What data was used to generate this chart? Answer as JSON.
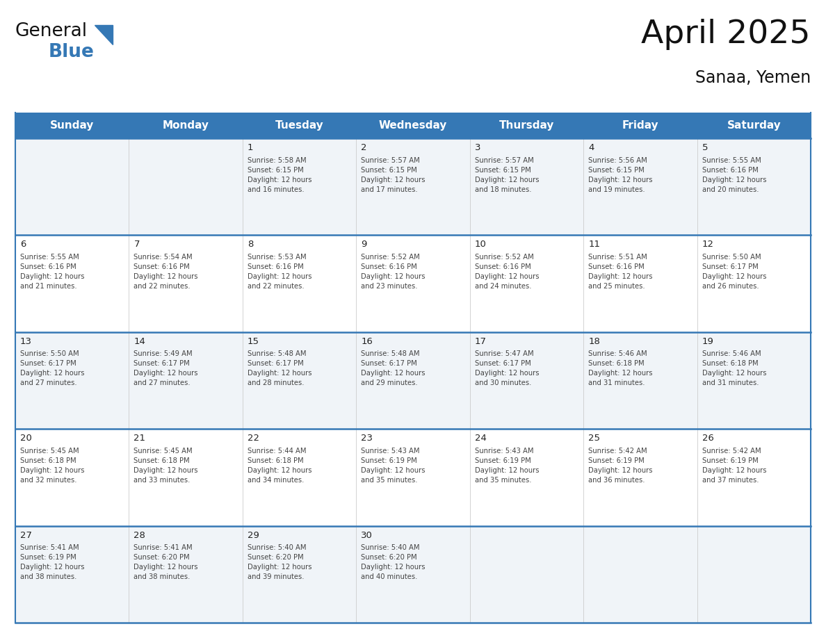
{
  "title": "April 2025",
  "subtitle": "Sanaa, Yemen",
  "header_bg_color": "#3578b5",
  "header_text_color": "#ffffff",
  "border_color": "#3578b5",
  "week_sep_color": "#3578b5",
  "col_sep_color": "#cccccc",
  "row_bg_even": "#f0f4f8",
  "row_bg_odd": "#ffffff",
  "title_color": "#111111",
  "subtitle_color": "#111111",
  "day_number_color": "#222222",
  "cell_text_color": "#444444",
  "logo_black_color": "#111111",
  "logo_blue_color": "#3578b5",
  "triangle_color": "#3578b5",
  "day_headers": [
    "Sunday",
    "Monday",
    "Tuesday",
    "Wednesday",
    "Thursday",
    "Friday",
    "Saturday"
  ],
  "calendar_data": [
    [
      {
        "day": null,
        "sunrise": null,
        "sunset": null,
        "daylight": ""
      },
      {
        "day": null,
        "sunrise": null,
        "sunset": null,
        "daylight": ""
      },
      {
        "day": 1,
        "sunrise": "5:58 AM",
        "sunset": "6:15 PM",
        "daylight": "12 hours\nand 16 minutes."
      },
      {
        "day": 2,
        "sunrise": "5:57 AM",
        "sunset": "6:15 PM",
        "daylight": "12 hours\nand 17 minutes."
      },
      {
        "day": 3,
        "sunrise": "5:57 AM",
        "sunset": "6:15 PM",
        "daylight": "12 hours\nand 18 minutes."
      },
      {
        "day": 4,
        "sunrise": "5:56 AM",
        "sunset": "6:15 PM",
        "daylight": "12 hours\nand 19 minutes."
      },
      {
        "day": 5,
        "sunrise": "5:55 AM",
        "sunset": "6:16 PM",
        "daylight": "12 hours\nand 20 minutes."
      }
    ],
    [
      {
        "day": 6,
        "sunrise": "5:55 AM",
        "sunset": "6:16 PM",
        "daylight": "12 hours\nand 21 minutes."
      },
      {
        "day": 7,
        "sunrise": "5:54 AM",
        "sunset": "6:16 PM",
        "daylight": "12 hours\nand 22 minutes."
      },
      {
        "day": 8,
        "sunrise": "5:53 AM",
        "sunset": "6:16 PM",
        "daylight": "12 hours\nand 22 minutes."
      },
      {
        "day": 9,
        "sunrise": "5:52 AM",
        "sunset": "6:16 PM",
        "daylight": "12 hours\nand 23 minutes."
      },
      {
        "day": 10,
        "sunrise": "5:52 AM",
        "sunset": "6:16 PM",
        "daylight": "12 hours\nand 24 minutes."
      },
      {
        "day": 11,
        "sunrise": "5:51 AM",
        "sunset": "6:16 PM",
        "daylight": "12 hours\nand 25 minutes."
      },
      {
        "day": 12,
        "sunrise": "5:50 AM",
        "sunset": "6:17 PM",
        "daylight": "12 hours\nand 26 minutes."
      }
    ],
    [
      {
        "day": 13,
        "sunrise": "5:50 AM",
        "sunset": "6:17 PM",
        "daylight": "12 hours\nand 27 minutes."
      },
      {
        "day": 14,
        "sunrise": "5:49 AM",
        "sunset": "6:17 PM",
        "daylight": "12 hours\nand 27 minutes."
      },
      {
        "day": 15,
        "sunrise": "5:48 AM",
        "sunset": "6:17 PM",
        "daylight": "12 hours\nand 28 minutes."
      },
      {
        "day": 16,
        "sunrise": "5:48 AM",
        "sunset": "6:17 PM",
        "daylight": "12 hours\nand 29 minutes."
      },
      {
        "day": 17,
        "sunrise": "5:47 AM",
        "sunset": "6:17 PM",
        "daylight": "12 hours\nand 30 minutes."
      },
      {
        "day": 18,
        "sunrise": "5:46 AM",
        "sunset": "6:18 PM",
        "daylight": "12 hours\nand 31 minutes."
      },
      {
        "day": 19,
        "sunrise": "5:46 AM",
        "sunset": "6:18 PM",
        "daylight": "12 hours\nand 31 minutes."
      }
    ],
    [
      {
        "day": 20,
        "sunrise": "5:45 AM",
        "sunset": "6:18 PM",
        "daylight": "12 hours\nand 32 minutes."
      },
      {
        "day": 21,
        "sunrise": "5:45 AM",
        "sunset": "6:18 PM",
        "daylight": "12 hours\nand 33 minutes."
      },
      {
        "day": 22,
        "sunrise": "5:44 AM",
        "sunset": "6:18 PM",
        "daylight": "12 hours\nand 34 minutes."
      },
      {
        "day": 23,
        "sunrise": "5:43 AM",
        "sunset": "6:19 PM",
        "daylight": "12 hours\nand 35 minutes."
      },
      {
        "day": 24,
        "sunrise": "5:43 AM",
        "sunset": "6:19 PM",
        "daylight": "12 hours\nand 35 minutes."
      },
      {
        "day": 25,
        "sunrise": "5:42 AM",
        "sunset": "6:19 PM",
        "daylight": "12 hours\nand 36 minutes."
      },
      {
        "day": 26,
        "sunrise": "5:42 AM",
        "sunset": "6:19 PM",
        "daylight": "12 hours\nand 37 minutes."
      }
    ],
    [
      {
        "day": 27,
        "sunrise": "5:41 AM",
        "sunset": "6:19 PM",
        "daylight": "12 hours\nand 38 minutes."
      },
      {
        "day": 28,
        "sunrise": "5:41 AM",
        "sunset": "6:20 PM",
        "daylight": "12 hours\nand 38 minutes."
      },
      {
        "day": 29,
        "sunrise": "5:40 AM",
        "sunset": "6:20 PM",
        "daylight": "12 hours\nand 39 minutes."
      },
      {
        "day": 30,
        "sunrise": "5:40 AM",
        "sunset": "6:20 PM",
        "daylight": "12 hours\nand 40 minutes."
      },
      {
        "day": null,
        "sunrise": null,
        "sunset": null,
        "daylight": ""
      },
      {
        "day": null,
        "sunrise": null,
        "sunset": null,
        "daylight": ""
      },
      {
        "day": null,
        "sunrise": null,
        "sunset": null,
        "daylight": ""
      }
    ]
  ]
}
